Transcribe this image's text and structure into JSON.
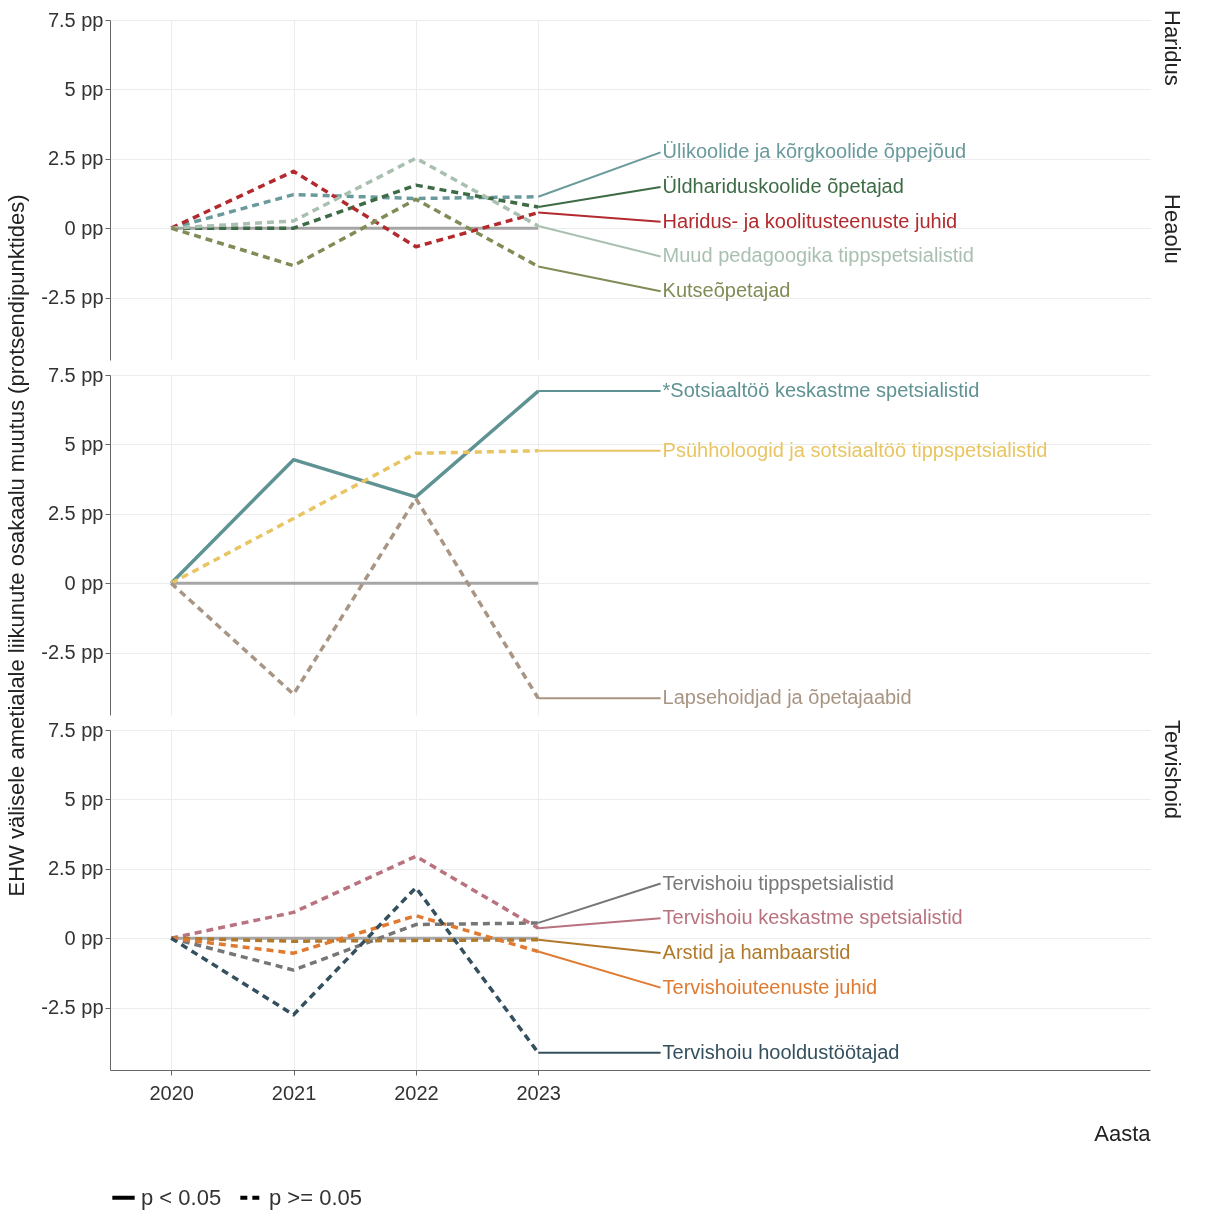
{
  "chart_data": [
    {
      "type": "line",
      "title": "Haridus",
      "x": [
        2020,
        2021,
        2022,
        2023
      ],
      "xlim": [
        2019.5,
        2028
      ],
      "xticks": [
        2020,
        2021,
        2022,
        2023
      ],
      "ylim": [
        -4.75,
        7.5
      ],
      "yticks": [
        {
          "value": -2.5,
          "label": "-2.5 pp"
        },
        {
          "value": 0,
          "label": "0 pp"
        },
        {
          "value": 2.5,
          "label": "2.5 pp"
        },
        {
          "value": 5,
          "label": "5 pp"
        },
        {
          "value": 7.5,
          "label": "7.5 pp"
        }
      ],
      "tick_labels": "y",
      "grid": true,
      "line_style": "dashed",
      "ref_lines": [
        {
          "axis": "y",
          "value": 0,
          "color": "#a6a6a6"
        }
      ],
      "series": [
        {
          "name": "Ülikoolide ja kõrgkoolide õppejõud",
          "color": "#6a9a9c",
          "values": [
            0,
            1.21,
            1.07,
            1.13
          ]
        },
        {
          "name": "Üldhariduskoolide õpetajad",
          "color": "#3d6b45",
          "values": [
            0,
            0,
            1.55,
            0.76
          ]
        },
        {
          "name": "Haridus- ja koolitusteenuste juhid",
          "color": "#b22a2e",
          "values": [
            0,
            2.05,
            -0.67,
            0.56
          ]
        },
        {
          "name": "Muud pedagoogika tippspetsialistid",
          "color": "#a9c0b0",
          "values": [
            0,
            0.26,
            2.52,
            0.08
          ]
        },
        {
          "name": "Kutseõpetajad",
          "color": "#7f8c55",
          "values": [
            0,
            -1.35,
            1.04,
            -1.38
          ]
        }
      ]
    },
    {
      "type": "line",
      "title": "Heaolu",
      "ylabel": "EHW välisele ametialale liikunute osakaalu muutus (protsendipunktides)",
      "x": [
        2020,
        2021,
        2022,
        2023
      ],
      "xlim": [
        2019.5,
        2028
      ],
      "xticks": [
        2020,
        2021,
        2022,
        2023
      ],
      "ylim": [
        -4.75,
        7.5
      ],
      "yticks": [
        {
          "value": -2.5,
          "label": "-2.5 pp"
        },
        {
          "value": 0,
          "label": "0 pp"
        },
        {
          "value": 2.5,
          "label": "2.5 pp"
        },
        {
          "value": 5,
          "label": "5 pp"
        },
        {
          "value": 7.5,
          "label": "7.5 pp"
        }
      ],
      "tick_labels": "y",
      "grid": true,
      "ref_lines": [
        {
          "axis": "y",
          "value": 0,
          "color": "#a6a6a6"
        }
      ],
      "series": [
        {
          "name": "*Sotsiaaltöö keskastme spetsialistid",
          "color": "#5f9393",
          "line_style": "solid",
          "values": [
            0,
            4.45,
            3.11,
            6.92
          ]
        },
        {
          "name": "Psühholoogid ja sotsiaaltöö tippspetsialistid",
          "color": "#e8c562",
          "line_style": "dashed",
          "values": [
            0,
            2.33,
            4.68,
            4.77
          ]
        },
        {
          "name": "Lapsehoidjad ja õpetajaabid",
          "color": "#a89583",
          "line_style": "dashed",
          "values": [
            0,
            -4.0,
            3.05,
            -4.15
          ]
        }
      ]
    },
    {
      "type": "line",
      "title": "Tervishoid",
      "xlabel": "Aasta",
      "x": [
        2020,
        2021,
        2022,
        2023
      ],
      "xlim": [
        2019.5,
        2028
      ],
      "xticks": [
        2020,
        2021,
        2022,
        2023
      ],
      "ylim": [
        -4.75,
        7.5
      ],
      "yticks": [
        {
          "value": -2.5,
          "label": "-2.5 pp"
        },
        {
          "value": 0,
          "label": "0 pp"
        },
        {
          "value": 2.5,
          "label": "2.5 pp"
        },
        {
          "value": 5,
          "label": "5 pp"
        },
        {
          "value": 7.5,
          "label": "7.5 pp"
        }
      ],
      "grid": true,
      "line_style": "dashed",
      "legend": "bottom",
      "annotations": [
        "p < 0.05",
        "p >= 0.05"
      ],
      "ref_lines": [
        {
          "axis": "y",
          "value": 0,
          "color": "#a6a6a6"
        }
      ],
      "series": [
        {
          "name": "Tervishoiu tippspetsialistid",
          "color": "#767676",
          "values": [
            0,
            -1.15,
            0.49,
            0.55
          ]
        },
        {
          "name": "Tervishoiu keskastme spetsialistid",
          "color": "#b8737f",
          "values": [
            0,
            0.93,
            2.95,
            0.36
          ]
        },
        {
          "name": "Arstid ja hambaarstid",
          "color": "#b07a2a",
          "values": [
            0,
            -0.11,
            -0.08,
            -0.06
          ]
        },
        {
          "name": "Tervishoiuteenuste juhid",
          "color": "#e07a30",
          "values": [
            0,
            -0.54,
            0.81,
            -0.48
          ]
        },
        {
          "name": "Tervishoiu hooldustöötajad",
          "color": "#34505e",
          "values": [
            0,
            -2.76,
            1.82,
            -4.13
          ]
        }
      ]
    }
  ]
}
